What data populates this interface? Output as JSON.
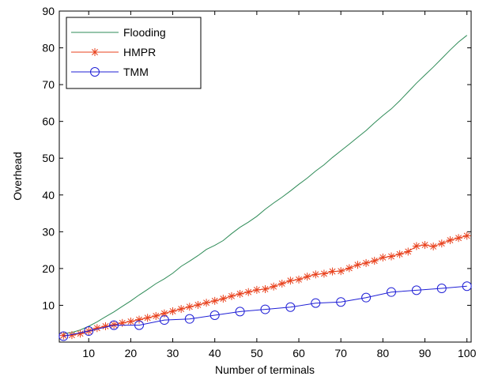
{
  "chart_data": {
    "type": "line",
    "xlabel": "Number of terminals",
    "ylabel": "Overhead",
    "xlim": [
      3,
      101
    ],
    "ylim": [
      0,
      90
    ],
    "xticks": [
      10,
      20,
      30,
      40,
      50,
      60,
      70,
      80,
      90,
      100
    ],
    "yticks": [
      10,
      20,
      30,
      40,
      50,
      60,
      70,
      80,
      90
    ],
    "grid": false,
    "legend_position": "top-left",
    "series": [
      {
        "name": "Flooding",
        "color": "#2e8b57",
        "marker": "none",
        "x": [
          4,
          6,
          8,
          10,
          12,
          14,
          16,
          18,
          20,
          22,
          24,
          26,
          28,
          30,
          32,
          34,
          36,
          38,
          40,
          42,
          44,
          46,
          48,
          50,
          52,
          54,
          56,
          58,
          60,
          62,
          64,
          66,
          68,
          70,
          72,
          74,
          76,
          78,
          80,
          82,
          84,
          86,
          88,
          90,
          92,
          94,
          96,
          98,
          100
        ],
        "y": [
          2.3,
          2.6,
          3.3,
          4.3,
          5.5,
          6.9,
          8.2,
          9.7,
          11.2,
          12.8,
          14.3,
          15.9,
          17.2,
          18.7,
          20.6,
          22.0,
          23.5,
          25.2,
          26.3,
          27.6,
          29.5,
          31.2,
          32.6,
          34.2,
          36.1,
          37.8,
          39.4,
          41.1,
          42.9,
          44.6,
          46.5,
          48.2,
          50.2,
          52.0,
          53.8,
          55.7,
          57.5,
          59.6,
          61.6,
          63.4,
          65.6,
          68.0,
          70.4,
          72.6,
          74.8,
          77.1,
          79.4,
          81.6,
          83.4
        ]
      },
      {
        "name": "HMPR",
        "color": "#e8401c",
        "marker": "asterisk",
        "x": [
          4,
          6,
          8,
          10,
          12,
          14,
          16,
          18,
          20,
          22,
          24,
          26,
          28,
          30,
          32,
          34,
          36,
          38,
          40,
          42,
          44,
          46,
          48,
          50,
          52,
          54,
          56,
          58,
          60,
          62,
          64,
          66,
          68,
          70,
          72,
          74,
          76,
          78,
          80,
          82,
          84,
          86,
          88,
          90,
          92,
          94,
          96,
          98,
          100
        ],
        "y": [
          1.8,
          1.9,
          2.3,
          3.0,
          3.8,
          4.3,
          4.7,
          5.2,
          5.6,
          6.1,
          6.6,
          7.1,
          7.8,
          8.4,
          9.0,
          9.6,
          10.1,
          10.7,
          11.2,
          11.8,
          12.5,
          13.1,
          13.6,
          14.2,
          14.4,
          15.1,
          15.9,
          16.7,
          17.0,
          17.8,
          18.4,
          18.6,
          19.2,
          19.3,
          20.1,
          21.0,
          21.5,
          22.1,
          23.0,
          23.3,
          23.9,
          24.6,
          26.1,
          26.4,
          26.0,
          26.8,
          27.7,
          28.3,
          28.9
        ]
      },
      {
        "name": "TMM",
        "color": "#1f1fd6",
        "marker": "circle",
        "x": [
          4,
          10,
          16,
          22,
          28,
          34,
          40,
          46,
          52,
          58,
          64,
          70,
          76,
          82,
          88,
          94,
          100
        ],
        "y": [
          1.6,
          3.0,
          4.6,
          4.6,
          6.0,
          6.3,
          7.3,
          8.3,
          8.9,
          9.5,
          10.6,
          10.9,
          12.1,
          13.6,
          14.1,
          14.6,
          15.2
        ]
      }
    ]
  }
}
